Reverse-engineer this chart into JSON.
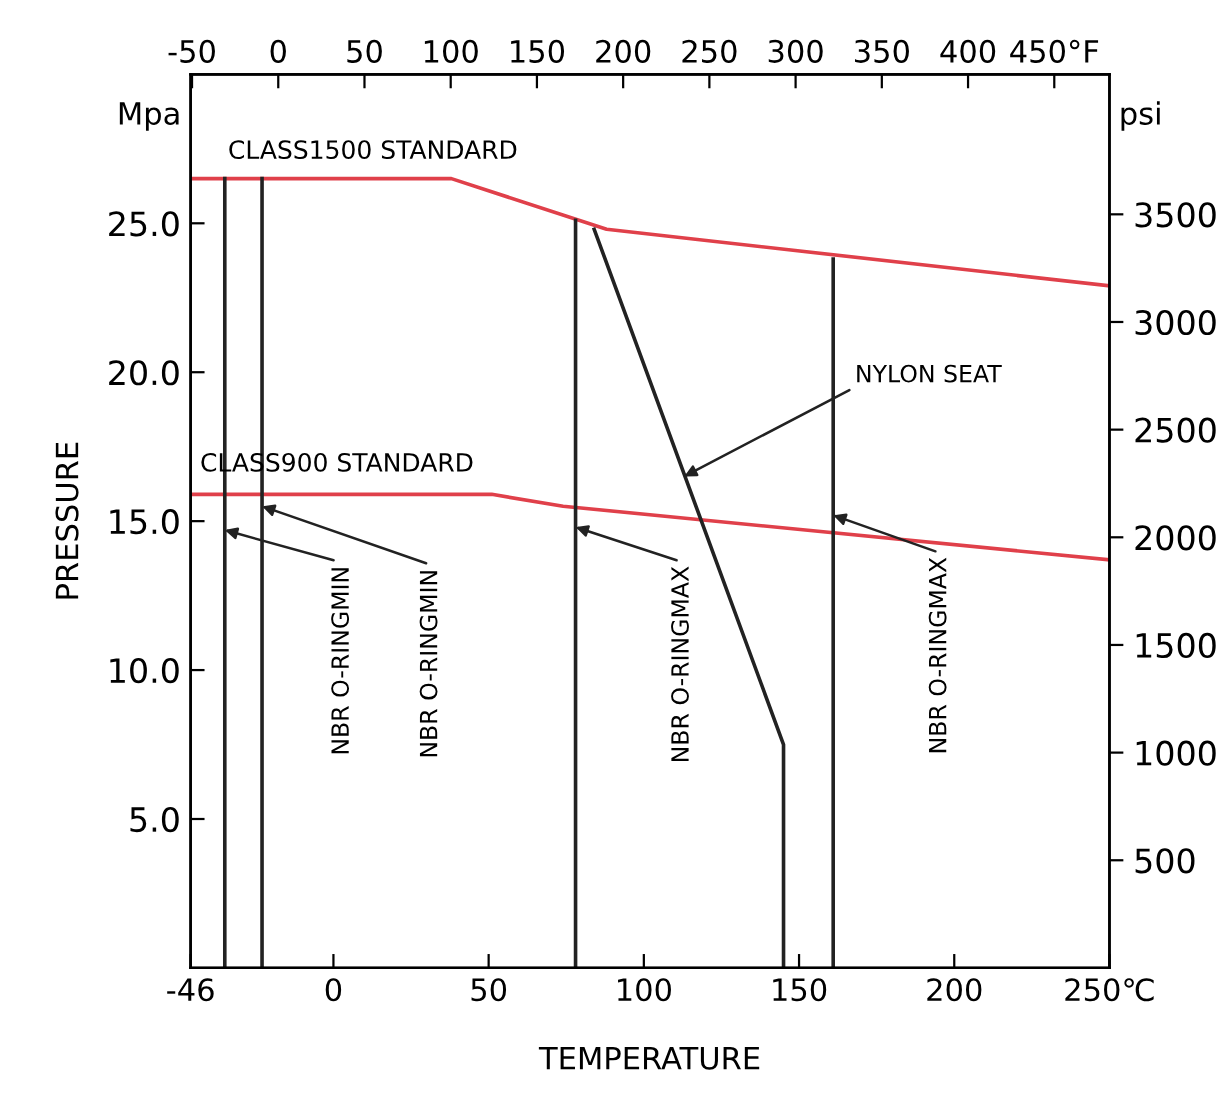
{
  "chart_data": {
    "type": "line",
    "xlabel": "TEMPERATURE",
    "ylabel": "PRESSURE",
    "series": [
      {
        "color": "#e0404a",
        "x": [
          -46,
          38,
          88,
          250
        ],
        "values": [
          26.5,
          26.5,
          24.8,
          22.9
        ]
      },
      {
        "color": "#e0404a",
        "x": [
          -46,
          51,
          74,
          250
        ],
        "values": [
          15.9,
          15.9,
          15.5,
          13.7
        ]
      },
      {
        "color": "#222222",
        "x": [
          -35,
          -35
        ],
        "values": [
          0,
          26.5
        ]
      },
      {
        "color": "#222222",
        "x": [
          -23,
          -23
        ],
        "values": [
          0,
          26.5
        ]
      },
      {
        "color": "#222222",
        "x": [
          78,
          78
        ],
        "values": [
          0,
          25.1
        ]
      },
      {
        "color": "#222222",
        "x": [
          161,
          161
        ],
        "values": [
          0,
          23.8
        ]
      },
      {
        "color": "#222222",
        "x": [
          84,
          145,
          145
        ],
        "values": [
          24.8,
          7.5,
          0
        ]
      }
    ],
    "xlim": [
      -46,
      250
    ],
    "xticks": [
      -46,
      0,
      50,
      100,
      150,
      200,
      {
        "value": 250,
        "label": "250℃"
      }
    ],
    "ylim": [
      0,
      30
    ],
    "yticks": [
      {
        "value": 5,
        "label": "5.0"
      },
      {
        "value": 10,
        "label": "10.0"
      },
      {
        "value": 15,
        "label": "15.0"
      },
      {
        "value": 20,
        "label": "20.0"
      },
      {
        "value": 25,
        "label": "25.0"
      }
    ],
    "y2lim": [
      0,
      4150
    ],
    "y2ticks": [
      500,
      1000,
      1500,
      2000,
      2500,
      3000,
      3500
    ],
    "x2lim": [
      -50.8,
      482
    ],
    "x2ticks": [
      -50,
      0,
      50,
      100,
      150,
      200,
      250,
      300,
      350,
      400,
      {
        "value": 450,
        "label": "450°F"
      }
    ],
    "annotations": [
      "CLASS1500 STANDARD",
      "CLASS900 STANDARD",
      {
        "text": "NYLON SEAT",
        "x": 113,
        "y": 16.5
      },
      {
        "text": "NBR O-RINGMIN",
        "x": -35,
        "y": 14.7
      },
      {
        "text": "NBR O-RINGMIN",
        "x": -23,
        "y": 15.5
      },
      {
        "text": "NBR O-RINGMAX",
        "x": 78,
        "y": 14.8
      },
      {
        "text": "NBR O-RINGMAX",
        "x": 161,
        "y": 15.2
      },
      "Mpa",
      "psi"
    ],
    "grid": false,
    "legend": false,
    "marker": "none",
    "line_style": "solid"
  }
}
